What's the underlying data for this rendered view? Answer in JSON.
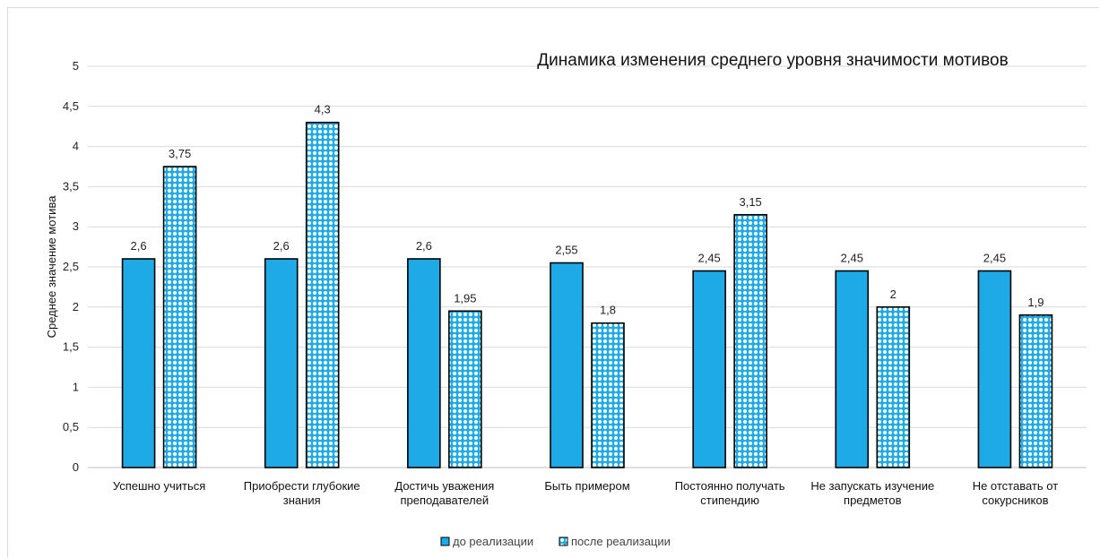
{
  "chart_data": {
    "type": "bar",
    "title": "Динамика изменения среднего уровня значимости мотивов",
    "xlabel": "",
    "ylabel": "Среднее значение мотива",
    "ylim": [
      0,
      5
    ],
    "yticks": [
      "0",
      "0,5",
      "1",
      "1,5",
      "2",
      "2,5",
      "3",
      "3,5",
      "4",
      "4,5",
      "5"
    ],
    "grid": "horizontal",
    "legend_position": "bottom",
    "categories": [
      [
        "Успешно учиться"
      ],
      [
        "Приобрести глубокие",
        "знания"
      ],
      [
        "Достичь уважения",
        "преподавателей"
      ],
      [
        "Быть примером"
      ],
      [
        "Постоянно получать",
        "стипендию"
      ],
      [
        "Не запускать изучение",
        "предметов"
      ],
      [
        "Не отставать от",
        "сокурсников"
      ]
    ],
    "series": [
      {
        "name": "до реализации",
        "values": [
          2.6,
          2.6,
          2.6,
          2.55,
          2.45,
          2.45,
          2.45
        ],
        "labels": [
          "2,6",
          "2,6",
          "2,6",
          "2,55",
          "2,45",
          "2,45",
          "2,45"
        ],
        "color": "#1eaae6",
        "pattern": "solid"
      },
      {
        "name": "после реализации",
        "values": [
          3.75,
          4.3,
          1.95,
          1.8,
          3.15,
          2.0,
          1.9
        ],
        "labels": [
          "3,75",
          "4,3",
          "1,95",
          "1,8",
          "3,15",
          "2",
          "1,9"
        ],
        "color": "#1eaae6",
        "pattern": "dotted"
      }
    ]
  }
}
